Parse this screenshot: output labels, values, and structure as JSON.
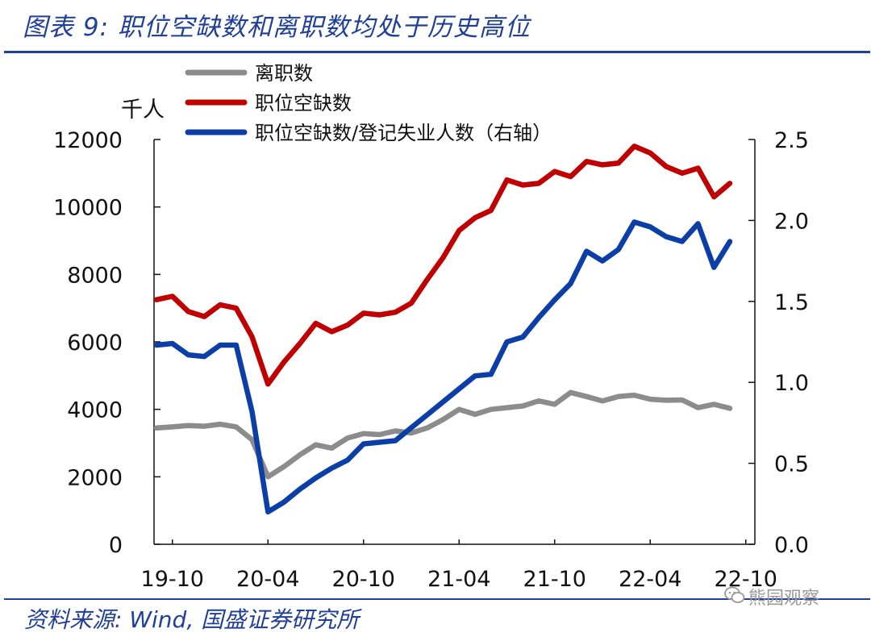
{
  "header": {
    "title": "图表 9:  职位空缺数和离职数均处于历史高位"
  },
  "footer": {
    "source": "资料来源:  Wind,  国盛证券研究所"
  },
  "watermark": {
    "text": "熊园观察",
    "icon": "wechat-icon"
  },
  "chart_data": {
    "type": "line",
    "title": "职位空缺数和离职数均处于历史高位",
    "y_unit_label": "千人",
    "x_ticks": [
      "19-10",
      "20-04",
      "20-10",
      "21-04",
      "21-10",
      "22-04",
      "22-10"
    ],
    "y_left": {
      "ticks": [
        "0",
        "2000",
        "4000",
        "6000",
        "8000",
        "10000",
        "12000"
      ],
      "min": 0,
      "max": 12000
    },
    "y_right": {
      "ticks": [
        "0.0",
        "0.5",
        "1.0",
        "1.5",
        "2.0",
        "2.5"
      ],
      "min": 0,
      "max": 2.5
    },
    "x": [
      "2019-09",
      "2019-10",
      "2019-11",
      "2019-12",
      "2020-01",
      "2020-02",
      "2020-03",
      "2020-04",
      "2020-05",
      "2020-06",
      "2020-07",
      "2020-08",
      "2020-09",
      "2020-10",
      "2020-11",
      "2020-12",
      "2021-01",
      "2021-02",
      "2021-03",
      "2021-04",
      "2021-05",
      "2021-06",
      "2021-07",
      "2021-08",
      "2021-09",
      "2021-10",
      "2021-11",
      "2021-12",
      "2022-01",
      "2022-02",
      "2022-03",
      "2022-04",
      "2022-05",
      "2022-06",
      "2022-07",
      "2022-08",
      "2022-09"
    ],
    "series": [
      {
        "name": "离职数",
        "axis": "left",
        "color": "#8c8c8c",
        "values": [
          3450,
          3480,
          3520,
          3500,
          3560,
          3480,
          3100,
          2000,
          2300,
          2650,
          2950,
          2850,
          3150,
          3280,
          3250,
          3360,
          3300,
          3450,
          3700,
          4000,
          3850,
          4000,
          4050,
          4100,
          4250,
          4150,
          4500,
          4380,
          4250,
          4380,
          4420,
          4300,
          4270,
          4280,
          4050,
          4150,
          4030
        ]
      },
      {
        "name": "职位空缺数",
        "axis": "left",
        "color": "#c00000",
        "values": [
          7250,
          7350,
          6900,
          6750,
          7100,
          7000,
          6150,
          4750,
          5400,
          5950,
          6550,
          6300,
          6500,
          6850,
          6800,
          6880,
          7150,
          7850,
          8500,
          9300,
          9680,
          9900,
          10800,
          10650,
          10700,
          11050,
          10900,
          11350,
          11250,
          11300,
          11800,
          11600,
          11200,
          11000,
          11150,
          10300,
          10700
        ]
      },
      {
        "name": "职位空缺数/登记失业人数（右轴）",
        "axis": "right",
        "color": "#0b3ea6",
        "values": [
          1.23,
          1.24,
          1.17,
          1.16,
          1.23,
          1.23,
          0.82,
          0.2,
          0.26,
          0.34,
          0.41,
          0.47,
          0.52,
          0.62,
          0.63,
          0.64,
          0.72,
          0.8,
          0.88,
          0.96,
          1.04,
          1.05,
          1.25,
          1.28,
          1.4,
          1.51,
          1.61,
          1.81,
          1.75,
          1.82,
          1.99,
          1.96,
          1.9,
          1.87,
          1.98,
          1.71,
          1.87
        ]
      }
    ],
    "legend": {
      "position": "top-left"
    },
    "grid": false
  }
}
